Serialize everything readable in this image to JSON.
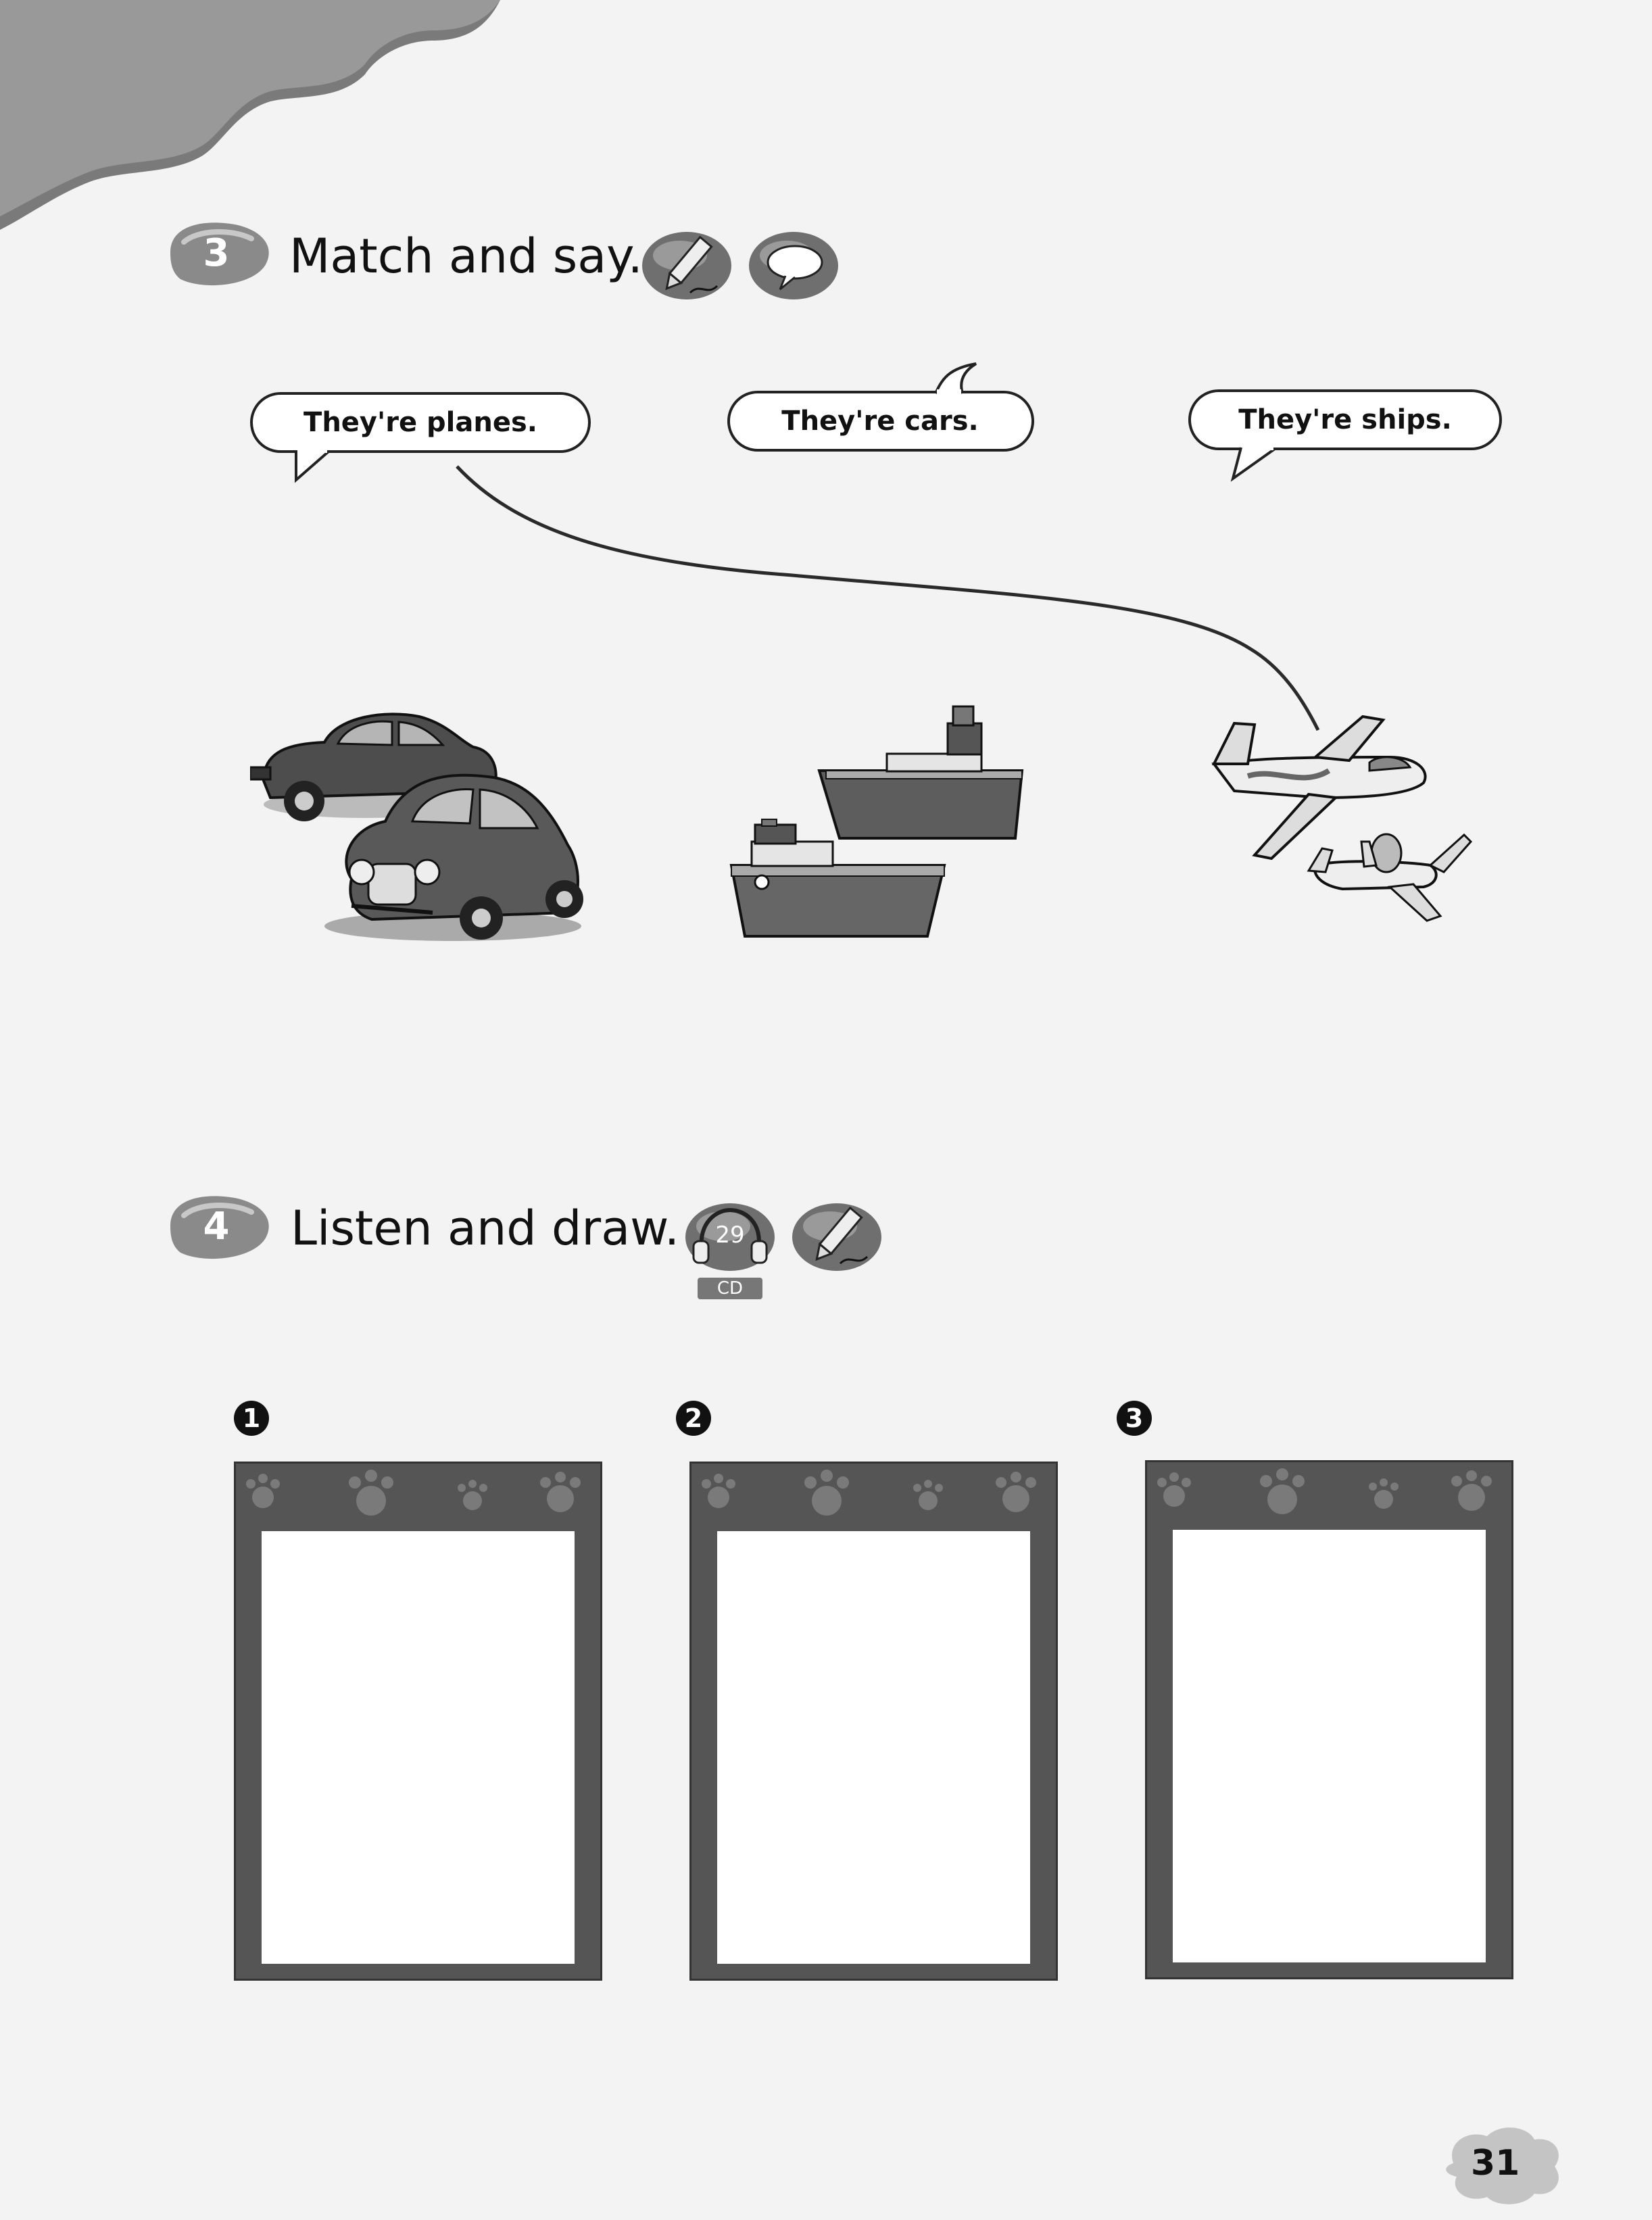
{
  "exercise3": {
    "number": "3",
    "title": "Match and say.",
    "icons": [
      "pencil-icon",
      "speech-bubble-icon"
    ],
    "bubbles": [
      "They're planes.",
      "They're cars.",
      "They're ships."
    ],
    "pictures": [
      "cars",
      "ships",
      "planes"
    ]
  },
  "exercise4": {
    "number": "4",
    "title": "Listen and draw.",
    "track": "29",
    "cd_label": "CD",
    "icons": [
      "headphones-icon",
      "pencil-icon"
    ],
    "frames": [
      "1",
      "2",
      "3"
    ]
  },
  "page_number": "31",
  "colors": {
    "badge": "#8a8a8a",
    "frame": "#555555",
    "line": "#333333"
  }
}
